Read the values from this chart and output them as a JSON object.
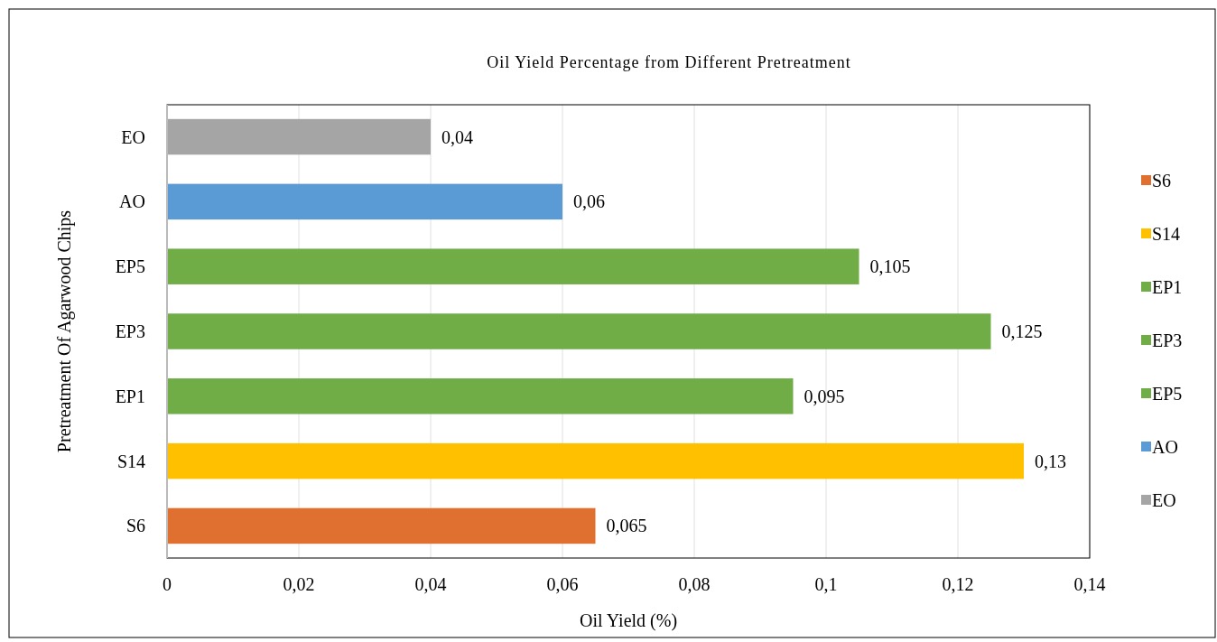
{
  "chart_data": {
    "type": "bar",
    "orientation": "horizontal",
    "stacked": true,
    "title": "Oil Yield Percentage from Different Pretreatment",
    "xlabel": "Oil Yield (%)",
    "ylabel": "Pretreatment Of Agarwood Chips",
    "categories": [
      "EO",
      "AO",
      "EP5",
      "EP3",
      "EP1",
      "S14",
      "S6"
    ],
    "series": [
      {
        "name": "S6",
        "color": "#e07030",
        "values": [
          null,
          null,
          null,
          null,
          null,
          null,
          0.065
        ],
        "value_labels": [
          null,
          null,
          null,
          null,
          null,
          null,
          "0,065"
        ]
      },
      {
        "name": "S14",
        "color": "#ffc000",
        "values": [
          null,
          null,
          null,
          null,
          null,
          0.13,
          null
        ],
        "value_labels": [
          null,
          null,
          null,
          null,
          null,
          "0,13",
          null
        ]
      },
      {
        "name": "EP1",
        "color": "#70ad47",
        "values": [
          null,
          null,
          null,
          null,
          0.095,
          null,
          null
        ],
        "value_labels": [
          null,
          null,
          null,
          null,
          "0,095",
          null,
          null
        ]
      },
      {
        "name": "EP3",
        "color": "#70ad47",
        "values": [
          null,
          null,
          null,
          0.125,
          null,
          null,
          null
        ],
        "value_labels": [
          null,
          null,
          null,
          "0,125",
          null,
          null,
          null
        ]
      },
      {
        "name": "EP5",
        "color": "#70ad47",
        "values": [
          null,
          null,
          0.105,
          null,
          null,
          null,
          null
        ],
        "value_labels": [
          null,
          null,
          "0,105",
          null,
          null,
          null,
          null
        ]
      },
      {
        "name": "AO",
        "color": "#5b9bd5",
        "values": [
          null,
          0.06,
          null,
          null,
          null,
          null,
          null
        ],
        "value_labels": [
          null,
          "0,06",
          null,
          null,
          null,
          null,
          null
        ]
      },
      {
        "name": "EO",
        "color": "#a5a5a5",
        "values": [
          0.04,
          null,
          null,
          null,
          null,
          null,
          null
        ],
        "value_labels": [
          "0,04",
          null,
          null,
          null,
          null,
          null,
          null
        ]
      }
    ],
    "xlim": [
      0,
      0.14
    ],
    "xticks": [
      0,
      {
        "value": 0.02,
        "label": "0,02"
      },
      {
        "value": 0.04,
        "label": "0,04"
      },
      {
        "value": 0.06,
        "label": "0,06"
      },
      {
        "value": 0.08,
        "label": "0,08"
      },
      {
        "value": 0.1,
        "label": "0,1"
      },
      {
        "value": 0.12,
        "label": "0,12"
      },
      {
        "value": 0.14,
        "label": "0,14"
      }
    ],
    "grid": "x",
    "legend": "right"
  }
}
